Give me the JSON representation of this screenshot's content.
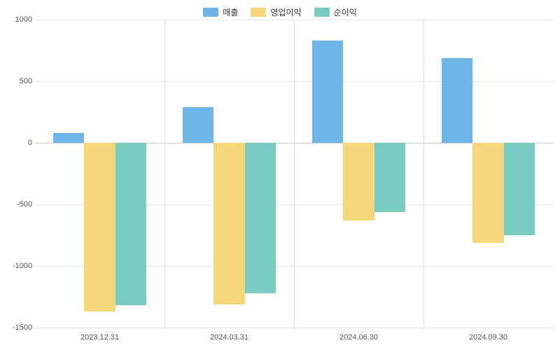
{
  "chart": {
    "type": "bar",
    "background_color": "#ffffff",
    "grid_color": "#e4e4e4",
    "axis_line_color": "#cccccc",
    "label_color": "#555555",
    "label_fontsize": 11,
    "legend_fontsize": 12,
    "ylim": [
      -1500,
      1000
    ],
    "ytick_step": 500,
    "yticks": [
      -1500,
      -1000,
      -500,
      0,
      500,
      1000
    ],
    "categories": [
      "2023.12.31",
      "2024.03.31",
      "2024.06.30",
      "2024.09.30"
    ],
    "series": [
      {
        "name": "매출",
        "color": "#6fb6e8",
        "values": [
          80,
          290,
          830,
          690
        ]
      },
      {
        "name": "영업이익",
        "color": "#f4d77b",
        "values": [
          -1370,
          -1310,
          -630,
          -810
        ]
      },
      {
        "name": "순이익",
        "color": "#77cbc0",
        "values": [
          -1320,
          -1220,
          -560,
          -750
        ]
      }
    ],
    "bar_group_width": 0.72,
    "bar_gap": 0.0
  }
}
